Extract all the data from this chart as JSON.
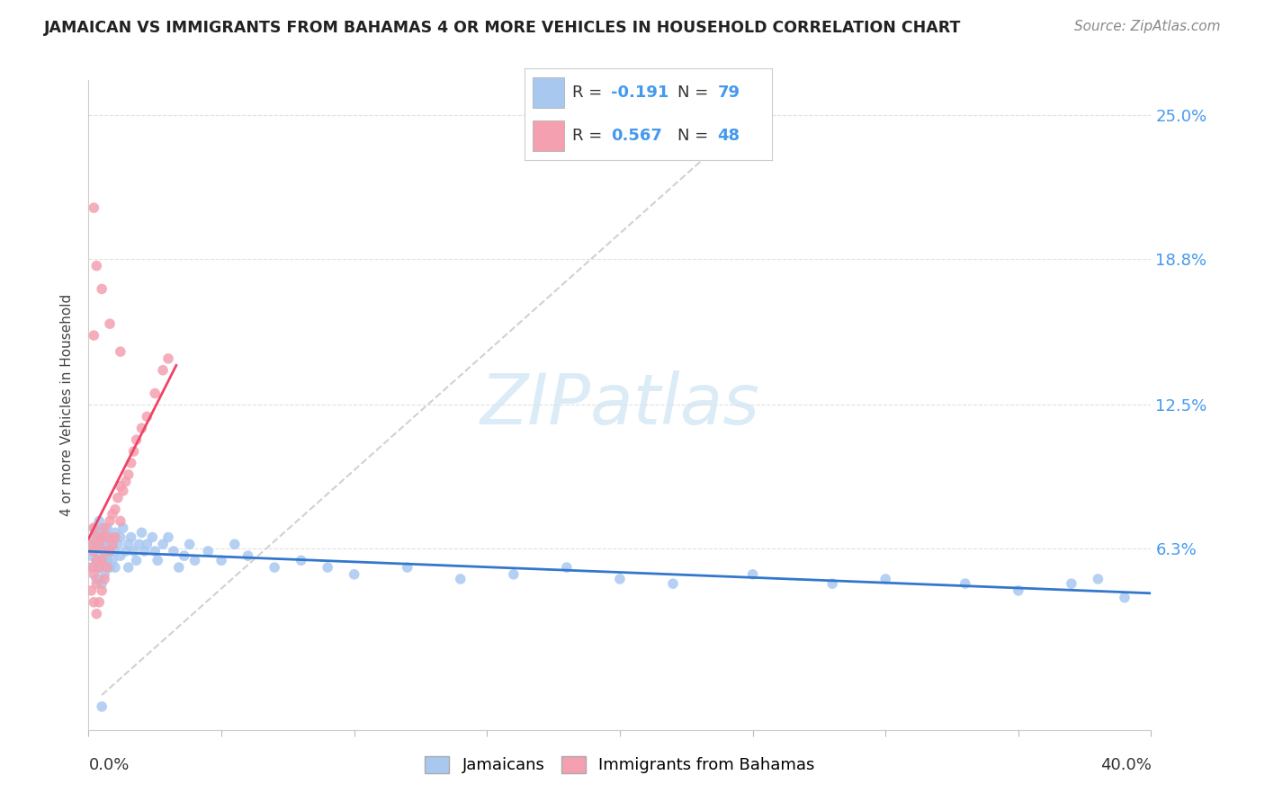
{
  "title": "JAMAICAN VS IMMIGRANTS FROM BAHAMAS 4 OR MORE VEHICLES IN HOUSEHOLD CORRELATION CHART",
  "source": "Source: ZipAtlas.com",
  "ylabel": "4 or more Vehicles in Household",
  "xmin": 0.0,
  "xmax": 0.4,
  "ymin": -0.015,
  "ymax": 0.265,
  "ytick_vals": [
    0.0,
    0.063,
    0.125,
    0.188,
    0.25
  ],
  "ytick_labels": [
    "",
    "6.3%",
    "12.5%",
    "18.8%",
    "25.0%"
  ],
  "blue_R": -0.191,
  "blue_N": 79,
  "pink_R": 0.567,
  "pink_N": 48,
  "legend_label_blue": "Jamaicans",
  "legend_label_pink": "Immigrants from Bahamas",
  "blue_color": "#a8c8f0",
  "pink_color": "#f4a0b0",
  "blue_line_color": "#3377cc",
  "pink_line_color": "#ee4466",
  "ref_line_color": "#cccccc",
  "grid_color": "#e0e0e0",
  "watermark_color": "#cce4f5",
  "blue_scatter_x": [
    0.001,
    0.001,
    0.002,
    0.002,
    0.002,
    0.002,
    0.003,
    0.003,
    0.003,
    0.003,
    0.004,
    0.004,
    0.004,
    0.004,
    0.005,
    0.005,
    0.005,
    0.005,
    0.006,
    0.006,
    0.006,
    0.007,
    0.007,
    0.007,
    0.008,
    0.008,
    0.008,
    0.009,
    0.009,
    0.01,
    0.01,
    0.01,
    0.011,
    0.012,
    0.012,
    0.013,
    0.014,
    0.015,
    0.015,
    0.016,
    0.017,
    0.018,
    0.019,
    0.02,
    0.021,
    0.022,
    0.024,
    0.025,
    0.026,
    0.028,
    0.03,
    0.032,
    0.034,
    0.036,
    0.038,
    0.04,
    0.045,
    0.05,
    0.055,
    0.06,
    0.07,
    0.08,
    0.09,
    0.1,
    0.12,
    0.14,
    0.16,
    0.18,
    0.2,
    0.22,
    0.25,
    0.28,
    0.3,
    0.33,
    0.35,
    0.37,
    0.38,
    0.39,
    0.005
  ],
  "blue_scatter_y": [
    0.065,
    0.06,
    0.072,
    0.062,
    0.068,
    0.055,
    0.07,
    0.065,
    0.058,
    0.05,
    0.068,
    0.062,
    0.075,
    0.055,
    0.072,
    0.065,
    0.058,
    0.048,
    0.068,
    0.06,
    0.052,
    0.065,
    0.058,
    0.072,
    0.062,
    0.068,
    0.055,
    0.065,
    0.058,
    0.07,
    0.062,
    0.055,
    0.065,
    0.068,
    0.06,
    0.072,
    0.062,
    0.065,
    0.055,
    0.068,
    0.062,
    0.058,
    0.065,
    0.07,
    0.062,
    0.065,
    0.068,
    0.062,
    0.058,
    0.065,
    0.068,
    0.062,
    0.055,
    0.06,
    0.065,
    0.058,
    0.062,
    0.058,
    0.065,
    0.06,
    0.055,
    0.058,
    0.055,
    0.052,
    0.055,
    0.05,
    0.052,
    0.055,
    0.05,
    0.048,
    0.052,
    0.048,
    0.05,
    0.048,
    0.045,
    0.048,
    0.05,
    0.042,
    -0.005
  ],
  "pink_scatter_x": [
    0.001,
    0.001,
    0.001,
    0.002,
    0.002,
    0.002,
    0.002,
    0.003,
    0.003,
    0.003,
    0.003,
    0.004,
    0.004,
    0.004,
    0.005,
    0.005,
    0.005,
    0.006,
    0.006,
    0.006,
    0.007,
    0.007,
    0.008,
    0.008,
    0.009,
    0.009,
    0.01,
    0.01,
    0.011,
    0.012,
    0.012,
    0.013,
    0.014,
    0.015,
    0.016,
    0.017,
    0.018,
    0.02,
    0.022,
    0.025,
    0.028,
    0.03,
    0.002,
    0.005,
    0.008,
    0.012,
    0.002,
    0.003
  ],
  "pink_scatter_y": [
    0.065,
    0.055,
    0.045,
    0.072,
    0.062,
    0.052,
    0.04,
    0.068,
    0.058,
    0.048,
    0.035,
    0.065,
    0.055,
    0.04,
    0.068,
    0.058,
    0.045,
    0.072,
    0.062,
    0.05,
    0.068,
    0.055,
    0.075,
    0.062,
    0.078,
    0.065,
    0.08,
    0.068,
    0.085,
    0.09,
    0.075,
    0.088,
    0.092,
    0.095,
    0.1,
    0.105,
    0.11,
    0.115,
    0.12,
    0.13,
    0.14,
    0.145,
    0.155,
    0.175,
    0.16,
    0.148,
    0.21,
    0.185
  ]
}
